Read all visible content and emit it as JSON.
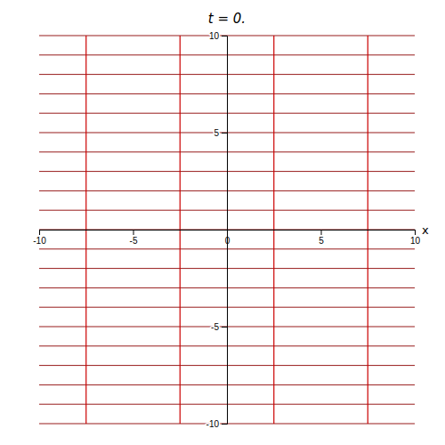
{
  "chart_data": {
    "type": "reference_lines",
    "title": "t = 0.",
    "xlabel": "x",
    "xlim": [
      -10,
      10
    ],
    "ylim": [
      -10,
      10
    ],
    "xticks": [
      -10,
      -5,
      0,
      5,
      10
    ],
    "yticks": [
      -10,
      -5,
      5,
      10
    ],
    "series": [
      {
        "type": "hline",
        "color": "#8B0000",
        "values": [
          -10,
          -9,
          -8,
          -7,
          -6,
          -5,
          -4,
          -3,
          -2,
          -1,
          0,
          1,
          2,
          3,
          4,
          5,
          6,
          7,
          8,
          9,
          10
        ]
      },
      {
        "type": "vline",
        "color": "#CC0000",
        "values": [
          -7.5,
          -2.5,
          2.5,
          7.5
        ]
      }
    ]
  }
}
